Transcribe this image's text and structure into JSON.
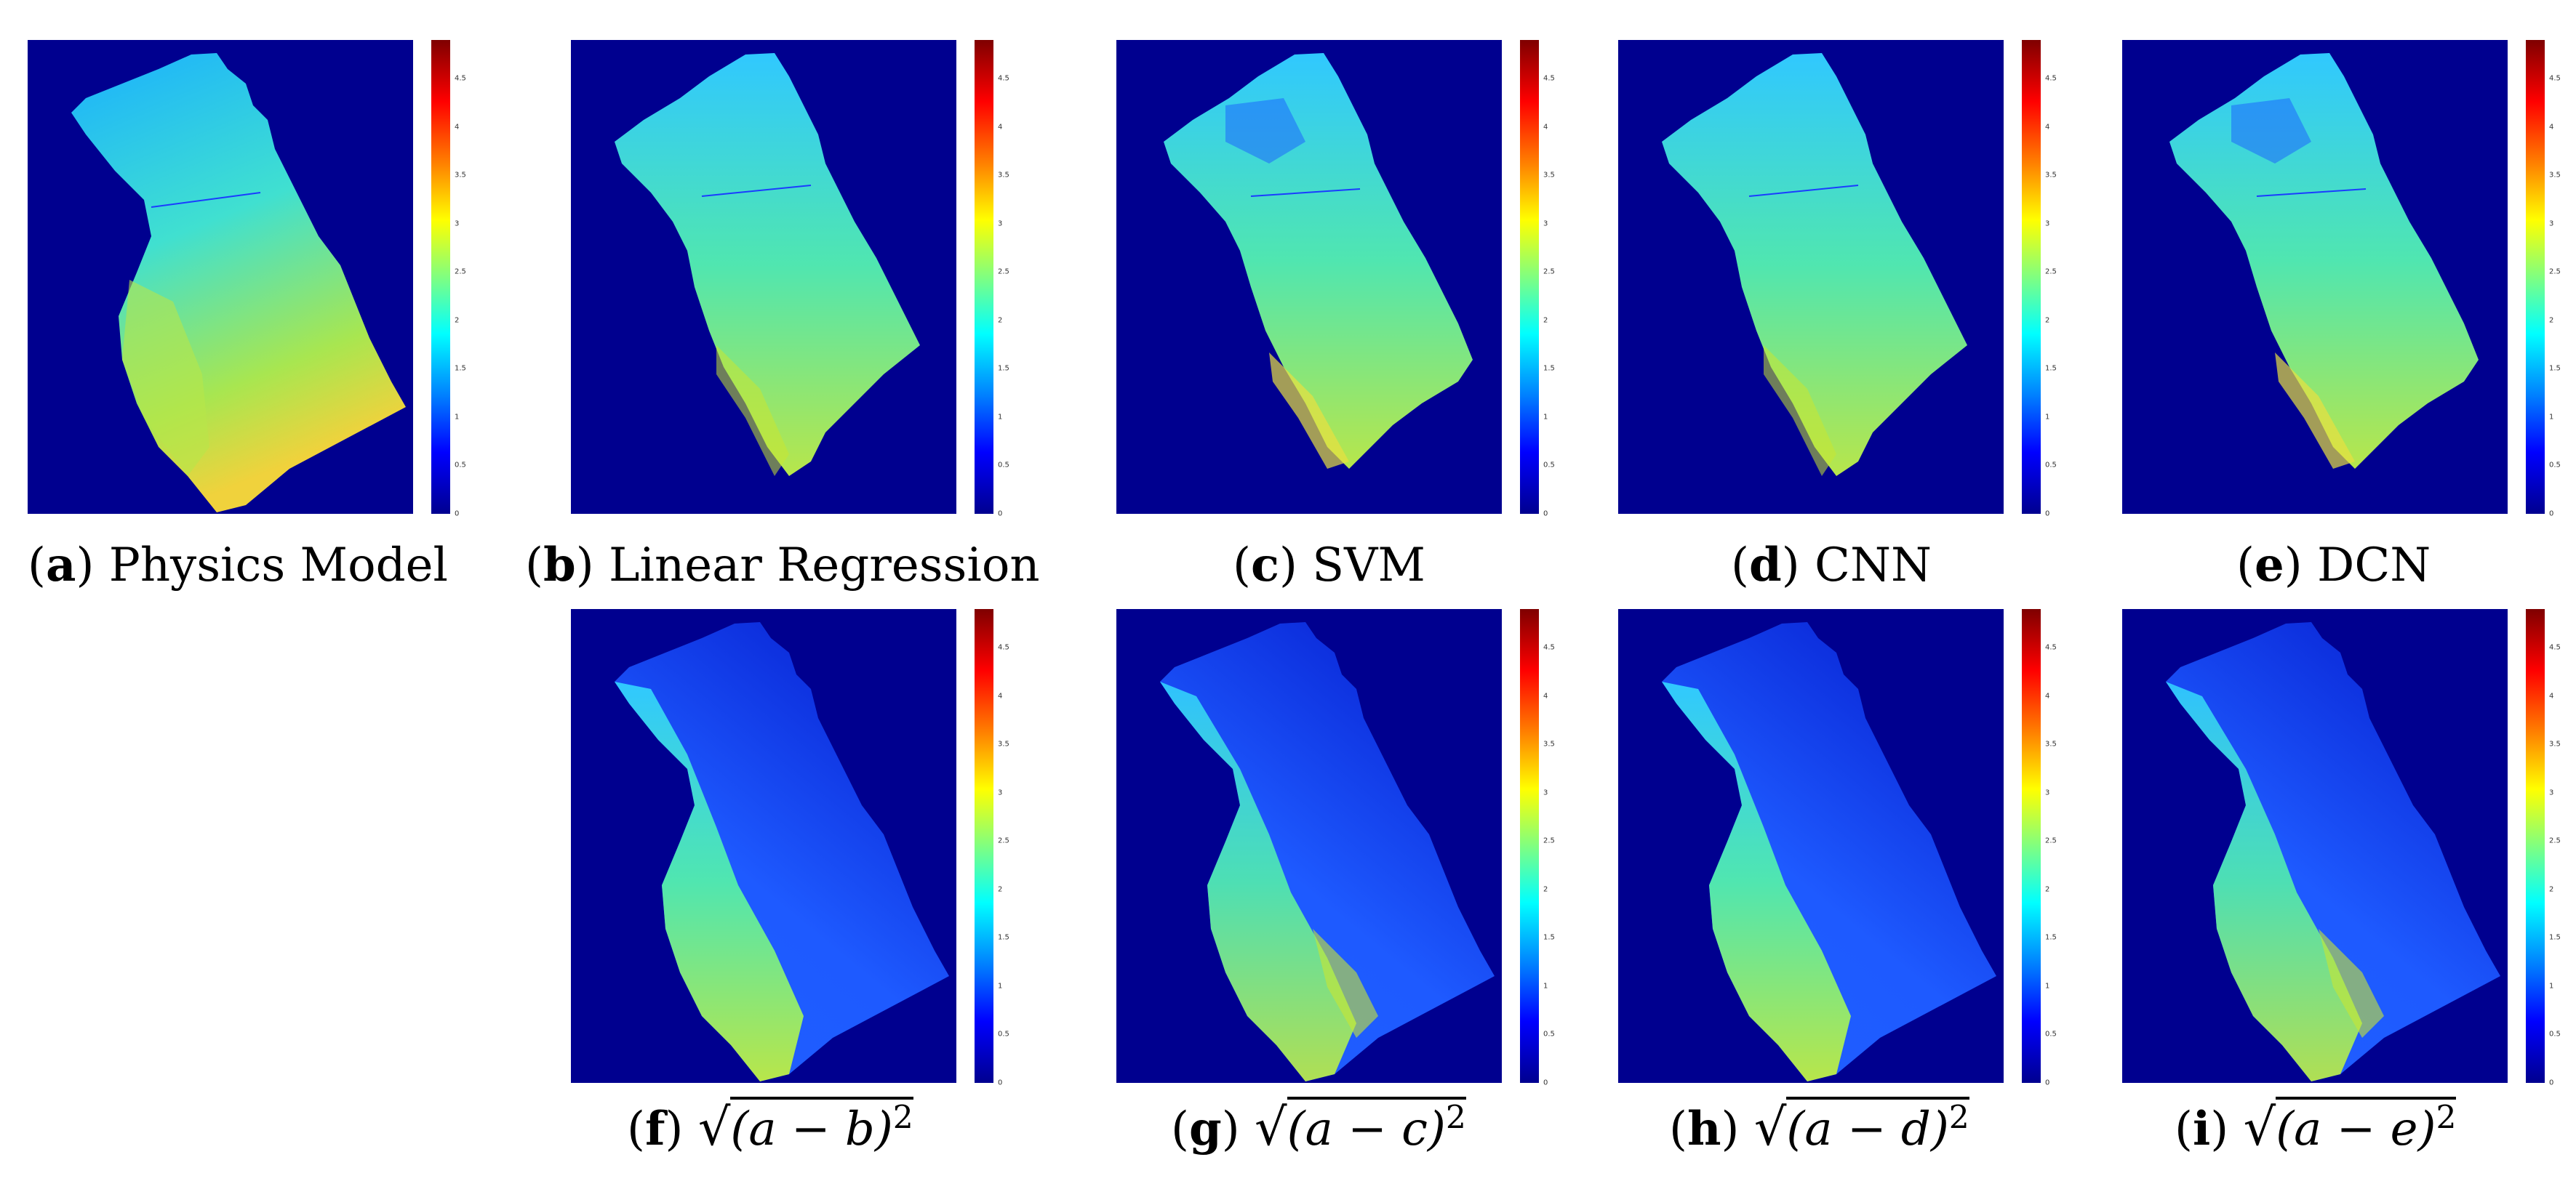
{
  "figure": {
    "colormap": "jet",
    "colorbar": {
      "ticks": [
        "4.5",
        "4",
        "3.5",
        "3",
        "2.5",
        "2",
        "1.5",
        "1",
        "0.5",
        "0"
      ],
      "range": [
        0,
        4.9
      ]
    },
    "panels": [
      {
        "id": "a",
        "label": "a",
        "title": "Physics Model",
        "type": "prediction"
      },
      {
        "id": "b",
        "label": "b",
        "title": "Linear Regression",
        "type": "prediction"
      },
      {
        "id": "c",
        "label": "c",
        "title": "SVM",
        "type": "prediction"
      },
      {
        "id": "d",
        "label": "d",
        "title": "CNN",
        "type": "prediction"
      },
      {
        "id": "e",
        "label": "e",
        "title": "DCN",
        "type": "prediction"
      },
      {
        "id": "f",
        "label": "f",
        "expr": "(a − b)",
        "exp": "2",
        "type": "difference"
      },
      {
        "id": "g",
        "label": "g",
        "expr": "(a − c)",
        "exp": "2",
        "type": "difference"
      },
      {
        "id": "h",
        "label": "h",
        "expr": "(a − d)",
        "exp": "2",
        "type": "difference"
      },
      {
        "id": "i",
        "label": "i",
        "expr": "(a − e)",
        "exp": "2",
        "type": "difference"
      }
    ],
    "colors": {
      "background": "#00008f",
      "water_low": "#00a0ff",
      "water_mid": "#40e0d0",
      "water_high": "#c8e632",
      "error_low": "#1a3cff",
      "error_high": "#a8e650"
    }
  }
}
